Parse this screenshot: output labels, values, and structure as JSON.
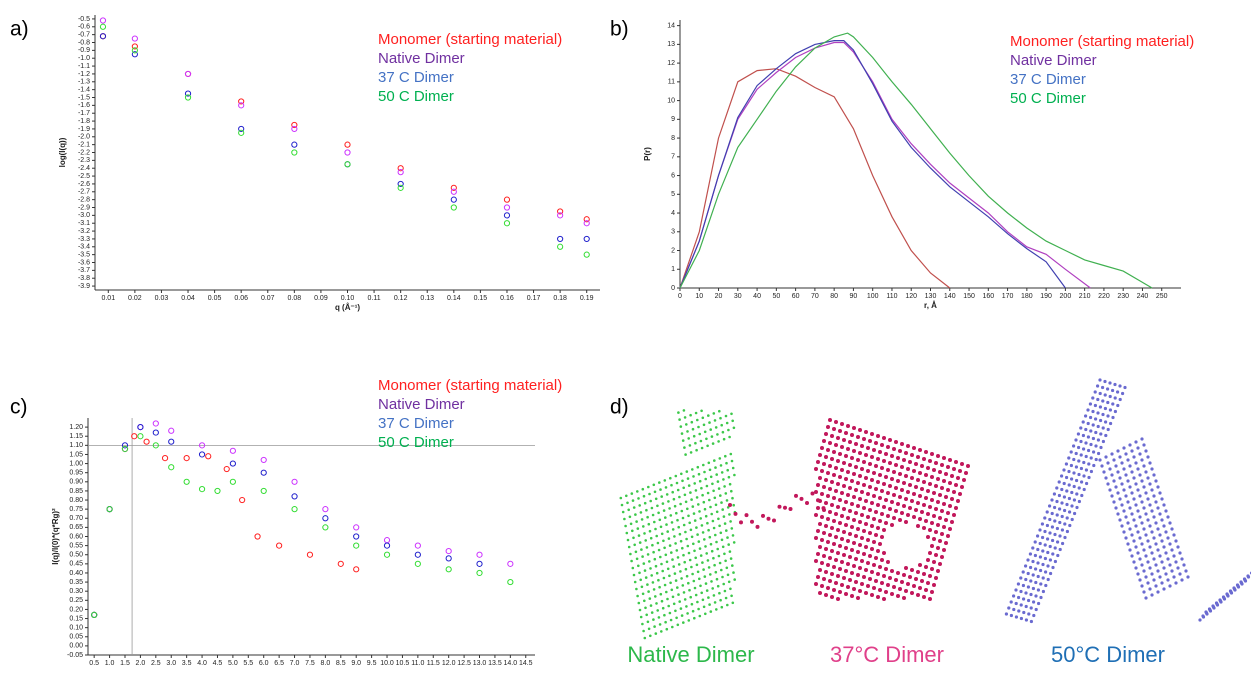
{
  "chart_data": [
    {
      "panel": "a)",
      "type": "scatter",
      "x_label": "q (Å⁻¹)",
      "y_label": "log(I(q))",
      "xlim": [
        0.005,
        0.195
      ],
      "ylim": [
        -3.95,
        -0.45
      ],
      "xticks": [
        0.01,
        0.02,
        0.03,
        0.04,
        0.05,
        0.06,
        0.07,
        0.08,
        0.09,
        {
          "value": 0.1,
          "label": "0.10"
        },
        0.11,
        0.12,
        0.13,
        0.14,
        0.15,
        0.16,
        0.17,
        0.18,
        0.19
      ],
      "yticks": [
        -0.5,
        -0.6,
        -0.7,
        -0.8,
        -0.9,
        {
          "value": -1,
          "label": "-1.0"
        },
        -1.1,
        -1.2,
        -1.3,
        -1.4,
        -1.5,
        -1.6,
        -1.7,
        -1.8,
        -1.9,
        {
          "value": -2,
          "label": "-2.0"
        },
        -2.1,
        -2.2,
        -2.3,
        -2.4,
        -2.5,
        -2.6,
        -2.7,
        -2.8,
        -2.9,
        {
          "value": -3,
          "label": "-3.0"
        },
        -3.1,
        -3.2,
        -3.3,
        -3.4,
        -3.5,
        -3.6,
        -3.7,
        -3.8,
        -3.9
      ],
      "series": [
        {
          "name": "Monomer (starting material)",
          "color": "#ff2020",
          "label_color": "#ff2020",
          "x": [
            0.008,
            0.02,
            0.04,
            0.06,
            0.08,
            0.1,
            0.12,
            0.14,
            0.16,
            0.18,
            0.19
          ],
          "values": [
            -0.72,
            -0.85,
            -1.2,
            -1.55,
            -1.85,
            -2.1,
            -2.4,
            -2.65,
            -2.8,
            -2.95,
            -3.05
          ]
        },
        {
          "name": "Native Dimer",
          "color": "#cc33ff",
          "label_color": "#7030a0",
          "x": [
            0.008,
            0.02,
            0.04,
            0.06,
            0.08,
            0.1,
            0.12,
            0.14,
            0.16,
            0.18,
            0.19
          ],
          "values": [
            -0.52,
            -0.75,
            -1.2,
            -1.6,
            -1.9,
            -2.2,
            -2.45,
            -2.7,
            -2.9,
            -3.0,
            -3.1
          ]
        },
        {
          "name": "37 C Dimer",
          "color": "#2020cc",
          "label_color": "#4472c4",
          "x": [
            0.008,
            0.02,
            0.04,
            0.06,
            0.08,
            0.1,
            0.12,
            0.14,
            0.16,
            0.18,
            0.19
          ],
          "values": [
            -0.72,
            -0.95,
            -1.45,
            -1.9,
            -2.1,
            -2.35,
            -2.6,
            -2.8,
            -3.0,
            -3.3,
            -3.3
          ]
        },
        {
          "name": "50 C Dimer",
          "color": "#33dd33",
          "label_color": "#00b050",
          "x": [
            0.008,
            0.02,
            0.04,
            0.06,
            0.08,
            0.1,
            0.12,
            0.14,
            0.16,
            0.18,
            0.19
          ],
          "values": [
            -0.6,
            -0.9,
            -1.5,
            -1.95,
            -2.2,
            -2.35,
            -2.65,
            -2.9,
            -3.1,
            -3.4,
            -3.5
          ]
        }
      ]
    },
    {
      "panel": "b)",
      "type": "line",
      "x_label": "r, Å",
      "y_label": "P(r)",
      "xlim": [
        0,
        260
      ],
      "ylim": [
        0,
        14.3
      ],
      "xticks": [
        0,
        10,
        20,
        30,
        40,
        50,
        60,
        70,
        80,
        90,
        100,
        110,
        120,
        130,
        140,
        150,
        160,
        170,
        180,
        190,
        200,
        210,
        220,
        230,
        240,
        250
      ],
      "yticks": [
        0,
        1,
        2,
        3,
        4,
        5,
        6,
        7,
        8,
        9,
        10,
        11,
        12,
        13,
        14
      ],
      "series": [
        {
          "name": "Monomer (starting material)",
          "color": "#c0504d",
          "label_color": "#ff2020",
          "x": [
            0,
            10,
            20,
            30,
            40,
            50,
            60,
            70,
            80,
            90,
            100,
            110,
            120,
            130,
            140
          ],
          "values": [
            0,
            3,
            8,
            11,
            11.6,
            11.7,
            11.3,
            10.7,
            10.2,
            8.5,
            6,
            3.8,
            2,
            0.8,
            0
          ]
        },
        {
          "name": "Native Dimer",
          "color": "#b040c0",
          "label_color": "#7030a0",
          "x": [
            0,
            10,
            20,
            30,
            40,
            50,
            60,
            70,
            80,
            85,
            90,
            100,
            110,
            120,
            130,
            140,
            150,
            160,
            170,
            180,
            190,
            200,
            213
          ],
          "values": [
            0,
            2.5,
            6,
            9,
            10.6,
            11.5,
            12.3,
            12.8,
            13.1,
            13.1,
            12.6,
            11,
            9,
            7.7,
            6.6,
            5.6,
            4.8,
            4,
            3,
            2.2,
            1.8,
            1,
            0
          ]
        },
        {
          "name": "37 C Dimer",
          "color": "#4040b0",
          "label_color": "#4472c4",
          "x": [
            0,
            10,
            20,
            30,
            40,
            50,
            60,
            70,
            80,
            85,
            90,
            100,
            110,
            120,
            130,
            140,
            150,
            160,
            170,
            180,
            190,
            200
          ],
          "values": [
            0,
            2.5,
            6,
            9.1,
            10.8,
            11.7,
            12.5,
            13,
            13.2,
            13.2,
            12.7,
            10.9,
            8.9,
            7.5,
            6.4,
            5.4,
            4.6,
            3.8,
            2.9,
            2.1,
            1.4,
            0
          ]
        },
        {
          "name": "50 C Dimer",
          "color": "#40b050",
          "label_color": "#00b050",
          "x": [
            0,
            10,
            20,
            30,
            40,
            50,
            60,
            70,
            80,
            87,
            90,
            100,
            110,
            120,
            130,
            140,
            150,
            160,
            170,
            180,
            190,
            200,
            210,
            220,
            230,
            240,
            245
          ],
          "values": [
            0,
            2,
            5,
            7.5,
            9,
            10.5,
            11.8,
            12.8,
            13.4,
            13.6,
            13.4,
            12.3,
            11,
            9.8,
            8.5,
            7.2,
            6,
            4.9,
            4,
            3.2,
            2.5,
            2,
            1.5,
            1.2,
            0.9,
            0.3,
            0
          ]
        }
      ]
    },
    {
      "panel": "c)",
      "type": "scatter",
      "y_label": "I(q)/I(0)*(q*Rg)²",
      "xlim": [
        0.3,
        14.8
      ],
      "ylim": [
        -0.05,
        1.25
      ],
      "hline": 1.1,
      "vline": 1.73,
      "xticks": [
        0.5,
        {
          "value": 1,
          "label": "1.0"
        },
        1.5,
        {
          "value": 2,
          "label": "2.0"
        },
        2.5,
        {
          "value": 3,
          "label": "3.0"
        },
        3.5,
        {
          "value": 4,
          "label": "4.0"
        },
        4.5,
        {
          "value": 5,
          "label": "5.0"
        },
        5.5,
        {
          "value": 6,
          "label": "6.0"
        },
        6.5,
        {
          "value": 7,
          "label": "7.0"
        },
        7.5,
        {
          "value": 8,
          "label": "8.0"
        },
        8.5,
        {
          "value": 9,
          "label": "9.0"
        },
        9.5,
        {
          "value": 10,
          "label": "10.0"
        },
        10.5,
        {
          "value": 11,
          "label": "11.0"
        },
        11.5,
        {
          "value": 12,
          "label": "12.0"
        },
        12.5,
        {
          "value": 13,
          "label": "13.0"
        },
        13.5,
        {
          "value": 14,
          "label": "14.0"
        },
        14.5
      ],
      "yticks": [
        -0.05,
        {
          "value": 0,
          "label": "0.00"
        },
        0.05,
        {
          "value": 0.1,
          "label": "0.10"
        },
        0.15,
        {
          "value": 0.2,
          "label": "0.20"
        },
        0.25,
        {
          "value": 0.3,
          "label": "0.30"
        },
        0.35,
        {
          "value": 0.4,
          "label": "0.40"
        },
        0.45,
        {
          "value": 0.5,
          "label": "0.50"
        },
        0.55,
        {
          "value": 0.6,
          "label": "0.60"
        },
        0.65,
        {
          "value": 0.7,
          "label": "0.70"
        },
        0.75,
        {
          "value": 0.8,
          "label": "0.80"
        },
        0.85,
        {
          "value": 0.9,
          "label": "0.90"
        },
        0.95,
        {
          "value": 1,
          "label": "1.00"
        },
        1.05,
        {
          "value": 1.1,
          "label": "1.10"
        },
        1.15,
        {
          "value": 1.2,
          "label": "1.20"
        }
      ],
      "series": [
        {
          "name": "Monomer (starting material)",
          "color": "#ff2020",
          "label_color": "#ff2020",
          "x": [
            0.5,
            1.0,
            1.5,
            1.8,
            2.2,
            2.8,
            3.5,
            4.2,
            4.8,
            5.3,
            5.8,
            6.5,
            7.5,
            8.5,
            9.0
          ],
          "values": [
            0.17,
            0.75,
            1.08,
            1.15,
            1.12,
            1.03,
            1.03,
            1.04,
            0.97,
            0.8,
            0.6,
            0.55,
            0.5,
            0.45,
            0.42
          ]
        },
        {
          "name": "Native Dimer",
          "color": "#cc33ff",
          "label_color": "#7030a0",
          "x": [
            0.5,
            1.0,
            1.5,
            2.0,
            2.5,
            3.0,
            4.0,
            5.0,
            6.0,
            7.0,
            8.0,
            9.0,
            10,
            11,
            12,
            13,
            14
          ],
          "values": [
            0.17,
            0.75,
            1.08,
            1.2,
            1.22,
            1.18,
            1.1,
            1.07,
            1.02,
            0.9,
            0.75,
            0.65,
            0.58,
            0.55,
            0.52,
            0.5,
            0.45
          ]
        },
        {
          "name": "37 C Dimer",
          "color": "#2020cc",
          "label_color": "#4472c4",
          "x": [
            0.5,
            1.0,
            1.5,
            2.0,
            2.5,
            3.0,
            4.0,
            5.0,
            6.0,
            7.0,
            8.0,
            9.0,
            10,
            11,
            12,
            13
          ],
          "values": [
            0.17,
            0.75,
            1.1,
            1.2,
            1.17,
            1.12,
            1.05,
            1.0,
            0.95,
            0.82,
            0.7,
            0.6,
            0.55,
            0.5,
            0.48,
            0.45
          ]
        },
        {
          "name": "50 C Dimer",
          "color": "#33dd33",
          "label_color": "#00b050",
          "x": [
            0.5,
            1.0,
            1.5,
            2.0,
            2.5,
            3.0,
            3.5,
            4.0,
            4.5,
            5.0,
            6.0,
            7.0,
            8.0,
            9.0,
            10,
            11,
            12,
            13,
            14
          ],
          "values": [
            0.17,
            0.75,
            1.08,
            1.15,
            1.1,
            0.98,
            0.9,
            0.86,
            0.85,
            0.9,
            0.85,
            0.75,
            0.65,
            0.55,
            0.5,
            0.45,
            0.42,
            0.4,
            0.35
          ]
        }
      ]
    }
  ],
  "models": {
    "panel": "d)",
    "captions": [
      "Native Dimer",
      "37°C Dimer",
      "50°C Dimer"
    ]
  }
}
